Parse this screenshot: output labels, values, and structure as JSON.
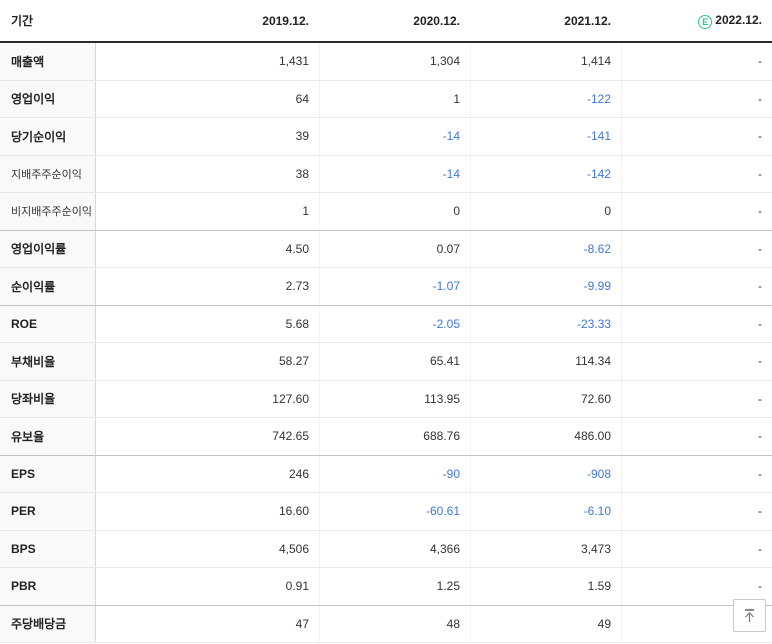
{
  "table": {
    "period_label": "기간",
    "columns": [
      "2019.12.",
      "2020.12.",
      "2021.12.",
      "2022.12."
    ],
    "estimate_badge": "E",
    "rows": [
      {
        "label": "매출액",
        "sub": false,
        "group_end": false,
        "values": [
          "1,431",
          "1,304",
          "1,414",
          "-"
        ]
      },
      {
        "label": "영업이익",
        "sub": false,
        "group_end": false,
        "values": [
          "64",
          "1",
          "-122",
          "-"
        ]
      },
      {
        "label": "당기순이익",
        "sub": false,
        "group_end": false,
        "values": [
          "39",
          "-14",
          "-141",
          "-"
        ]
      },
      {
        "label": "지배주주순이익",
        "sub": true,
        "group_end": false,
        "values": [
          "38",
          "-14",
          "-142",
          "-"
        ]
      },
      {
        "label": "비지배주주순이익",
        "sub": true,
        "group_end": true,
        "values": [
          "1",
          "0",
          "0",
          "-"
        ]
      },
      {
        "label": "영업이익률",
        "sub": false,
        "group_end": false,
        "values": [
          "4.50",
          "0.07",
          "-8.62",
          "-"
        ]
      },
      {
        "label": "순이익률",
        "sub": false,
        "group_end": true,
        "values": [
          "2.73",
          "-1.07",
          "-9.99",
          "-"
        ]
      },
      {
        "label": "ROE",
        "sub": false,
        "group_end": false,
        "values": [
          "5.68",
          "-2.05",
          "-23.33",
          "-"
        ]
      },
      {
        "label": "부채비율",
        "sub": false,
        "group_end": false,
        "values": [
          "58.27",
          "65.41",
          "114.34",
          "-"
        ]
      },
      {
        "label": "당좌비율",
        "sub": false,
        "group_end": false,
        "values": [
          "127.60",
          "113.95",
          "72.60",
          "-"
        ]
      },
      {
        "label": "유보율",
        "sub": false,
        "group_end": true,
        "values": [
          "742.65",
          "688.76",
          "486.00",
          "-"
        ]
      },
      {
        "label": "EPS",
        "sub": false,
        "group_end": false,
        "values": [
          "246",
          "-90",
          "-908",
          "-"
        ]
      },
      {
        "label": "PER",
        "sub": false,
        "group_end": false,
        "values": [
          "16.60",
          "-60.61",
          "-6.10",
          "-"
        ]
      },
      {
        "label": "BPS",
        "sub": false,
        "group_end": false,
        "values": [
          "4,506",
          "4,366",
          "3,473",
          "-"
        ]
      },
      {
        "label": "PBR",
        "sub": false,
        "group_end": true,
        "values": [
          "0.91",
          "1.25",
          "1.59",
          "-"
        ]
      },
      {
        "label": "주당배당금",
        "sub": false,
        "group_end": false,
        "values": [
          "47",
          "48",
          "49",
          "-"
        ]
      }
    ],
    "colors": {
      "negative_value": "#4178d4",
      "estimate_green": "#2cc593",
      "header_border": "#2b2b2b",
      "label_bg": "#f9f9f9"
    }
  },
  "scroll_top": {
    "tooltip": "맨위로"
  }
}
